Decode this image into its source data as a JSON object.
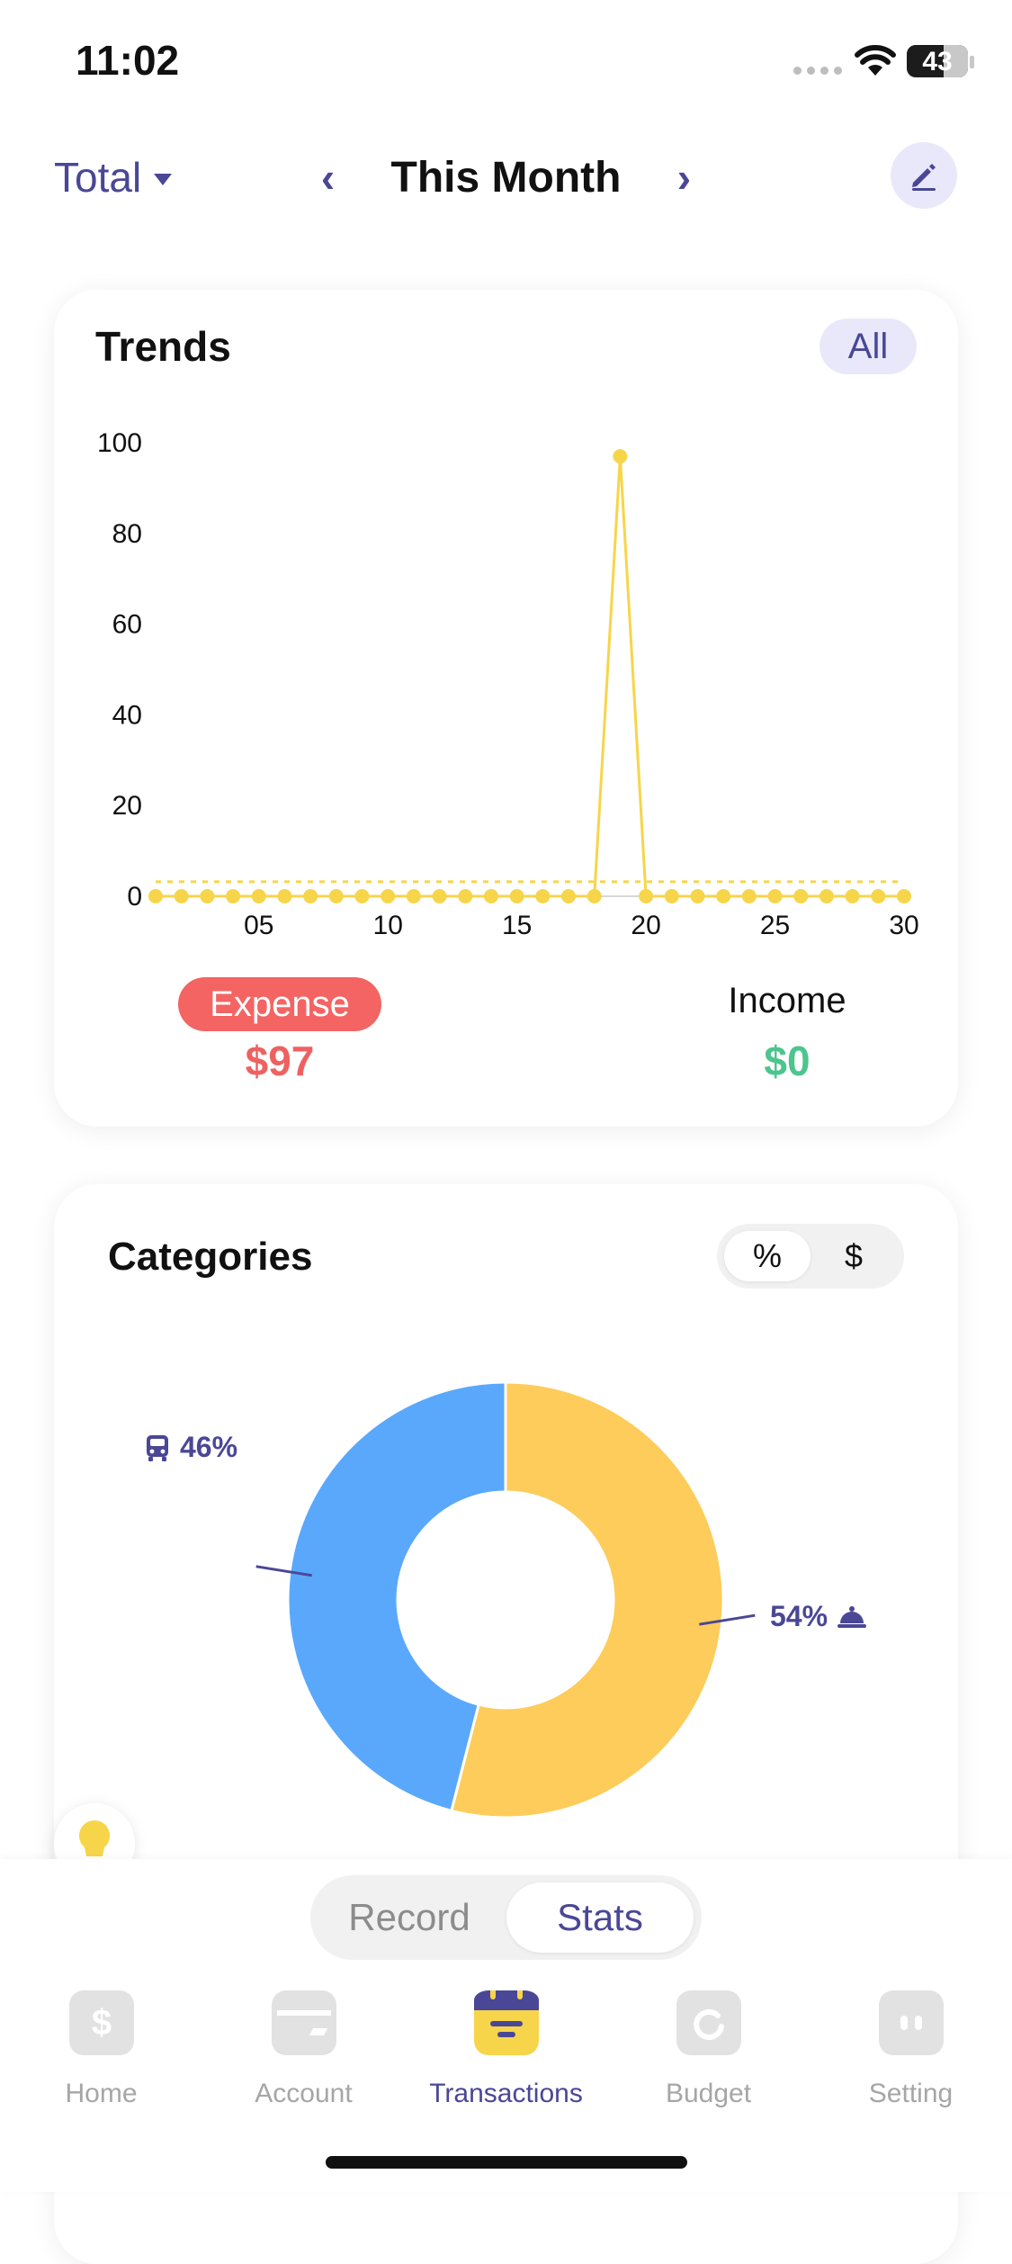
{
  "status_bar": {
    "time": "11:02",
    "battery": "43"
  },
  "header": {
    "total_label": "Total",
    "month_label": "This Month",
    "prev_symbol": "‹",
    "next_symbol": "›"
  },
  "trends": {
    "title": "Trends",
    "filter_label": "All",
    "expense_label": "Expense",
    "expense_value": "$97",
    "income_label": "Income",
    "income_value": "$0"
  },
  "chart_data": {
    "type": "line",
    "x": [
      1,
      2,
      3,
      4,
      5,
      6,
      7,
      8,
      9,
      10,
      11,
      12,
      13,
      14,
      15,
      16,
      17,
      18,
      19,
      20,
      21,
      22,
      23,
      24,
      25,
      26,
      27,
      28,
      29,
      30
    ],
    "series": [
      {
        "values": [
          0,
          0,
          0,
          0,
          0,
          0,
          0,
          0,
          0,
          0,
          0,
          0,
          0,
          0,
          0,
          0,
          0,
          0,
          97,
          0,
          0,
          0,
          0,
          0,
          0,
          0,
          0,
          0,
          0,
          0
        ],
        "color": "#f7d54a"
      }
    ],
    "average_line": {
      "value": 3.2,
      "color": "#f7d54a",
      "style": "dashed"
    },
    "xticks": [
      "05",
      "10",
      "15",
      "20",
      "25",
      "30"
    ],
    "xtick_positions": [
      5,
      10,
      15,
      20,
      25,
      30
    ],
    "yticks": [
      "0",
      "20",
      "40",
      "60",
      "80",
      "100"
    ],
    "ytick_values": [
      0,
      20,
      40,
      60,
      80,
      100
    ],
    "ylim": [
      0,
      100
    ],
    "xlim": [
      1,
      30
    ],
    "grid": false
  },
  "categories": {
    "title": "Categories",
    "toggle_percent": "%",
    "toggle_amount": "$",
    "chart": {
      "type": "pie",
      "donut": true,
      "slices": [
        {
          "label": "54%",
          "value": 54,
          "color": "#fdcc5a",
          "icon": "service-bell-icon"
        },
        {
          "label": "46%",
          "value": 46,
          "color": "#5aa8fb",
          "icon": "bus-icon"
        }
      ]
    }
  },
  "bottom": {
    "segment_record": "Record",
    "segment_stats": "Stats",
    "tabs": [
      {
        "label": "Home",
        "icon": "dollar-icon"
      },
      {
        "label": "Account",
        "icon": "wallet-icon"
      },
      {
        "label": "Transactions",
        "icon": "calendar-icon"
      },
      {
        "label": "Budget",
        "icon": "budget-icon"
      },
      {
        "label": "Setting",
        "icon": "setting-icon"
      }
    ],
    "active_color": "#4a4796"
  }
}
